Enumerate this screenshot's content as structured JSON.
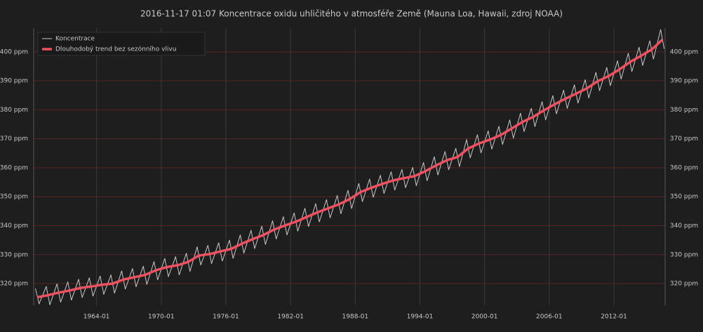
{
  "chart_data": {
    "type": "line",
    "title": "2016-11-17  01:07  Koncentrace oxidu uhličitého v atmosféře Země (Mauna Loa, Hawaii, zdroj NOAA)",
    "xlim": [
      "1958-03",
      "2016-10"
    ],
    "xticks": [
      "1964-01",
      "1970-01",
      "1976-01",
      "1982-01",
      "1988-01",
      "1994-01",
      "2000-01",
      "2006-01",
      "2012-01"
    ],
    "ylim": [
      312.5,
      408.2
    ],
    "yticks": [
      {
        "value": 320,
        "label": "320 ppm"
      },
      {
        "value": 330,
        "label": "330 ppm"
      },
      {
        "value": 340,
        "label": "340 ppm"
      },
      {
        "value": 350,
        "label": "350 ppm"
      },
      {
        "value": 360,
        "label": "360 ppm"
      },
      {
        "value": 370,
        "label": "370 ppm"
      },
      {
        "value": 380,
        "label": "380 ppm"
      },
      {
        "value": 390,
        "label": "390 ppm"
      },
      {
        "value": 400,
        "label": "400 ppm"
      }
    ],
    "grid": true,
    "legend": "top-left",
    "series": [
      {
        "name": "Koncentrace",
        "color": "#c8c8c8",
        "x": [
          "1958-05",
          "1958-09",
          "1959-05",
          "1959-09",
          "1960-05",
          "1960-09",
          "1961-05",
          "1961-09",
          "1962-05",
          "1962-09",
          "1963-05",
          "1963-09",
          "1964-05",
          "1964-09",
          "1965-05",
          "1965-09",
          "1966-05",
          "1966-09",
          "1967-05",
          "1967-09",
          "1968-05",
          "1968-09",
          "1969-05",
          "1969-09",
          "1970-05",
          "1970-09",
          "1971-05",
          "1971-09",
          "1972-05",
          "1972-09",
          "1973-05",
          "1973-09",
          "1974-05",
          "1974-09",
          "1975-05",
          "1975-09",
          "1976-05",
          "1976-09",
          "1977-05",
          "1977-09",
          "1978-05",
          "1978-09",
          "1979-05",
          "1979-09",
          "1980-05",
          "1980-09",
          "1981-05",
          "1981-09",
          "1982-05",
          "1982-09",
          "1983-05",
          "1983-09",
          "1984-05",
          "1984-09",
          "1985-05",
          "1985-09",
          "1986-05",
          "1986-09",
          "1987-05",
          "1987-09",
          "1988-05",
          "1988-09",
          "1989-05",
          "1989-09",
          "1990-05",
          "1990-09",
          "1991-05",
          "1991-09",
          "1992-05",
          "1992-09",
          "1993-05",
          "1993-09",
          "1994-05",
          "1994-09",
          "1995-05",
          "1995-09",
          "1996-05",
          "1996-09",
          "1997-05",
          "1997-09",
          "1998-05",
          "1998-09",
          "1999-05",
          "1999-09",
          "2000-05",
          "2000-09",
          "2001-05",
          "2001-09",
          "2002-05",
          "2002-09",
          "2003-05",
          "2003-09",
          "2004-05",
          "2004-09",
          "2005-05",
          "2005-09",
          "2006-05",
          "2006-09",
          "2007-05",
          "2007-09",
          "2008-05",
          "2008-09",
          "2009-05",
          "2009-09",
          "2010-05",
          "2010-09",
          "2011-05",
          "2011-09",
          "2012-05",
          "2012-09",
          "2013-05",
          "2013-09",
          "2014-05",
          "2014-09",
          "2015-05",
          "2015-09",
          "2016-05",
          "2016-09"
        ],
        "values": [
          318.3,
          313.0,
          319.0,
          312.7,
          319.9,
          313.6,
          320.6,
          314.3,
          321.5,
          315.2,
          322.0,
          315.7,
          322.6,
          316.3,
          323.0,
          316.7,
          324.4,
          318.1,
          325.2,
          318.9,
          326.0,
          319.7,
          327.6,
          321.3,
          328.7,
          322.4,
          329.3,
          323.0,
          330.5,
          324.2,
          332.7,
          326.4,
          333.2,
          326.9,
          334.1,
          327.8,
          335.0,
          328.7,
          336.8,
          330.5,
          338.4,
          332.1,
          339.8,
          333.5,
          341.7,
          335.4,
          343.1,
          336.8,
          344.4,
          338.1,
          346.0,
          339.7,
          347.6,
          341.3,
          349.0,
          342.7,
          350.4,
          344.1,
          352.2,
          345.9,
          354.6,
          348.3,
          356.1,
          349.8,
          357.4,
          351.1,
          358.6,
          352.3,
          359.4,
          353.1,
          360.1,
          353.8,
          361.8,
          355.5,
          363.8,
          357.5,
          365.6,
          359.3,
          366.7,
          360.4,
          369.7,
          363.4,
          371.4,
          365.1,
          372.7,
          366.4,
          374.3,
          368.0,
          376.5,
          370.2,
          378.8,
          372.5,
          380.5,
          374.2,
          382.8,
          376.5,
          384.9,
          378.6,
          386.8,
          380.5,
          388.6,
          382.3,
          390.4,
          384.1,
          392.9,
          386.6,
          394.6,
          388.3,
          396.9,
          390.6,
          399.5,
          393.2,
          401.6,
          395.3,
          403.8,
          397.5,
          407.7,
          401.0
        ]
      },
      {
        "name": "Dlouhodobý trend bez sezónního vlivu",
        "color": "#f0505f",
        "x": [
          "1958-07",
          "1959-07",
          "1960-07",
          "1961-07",
          "1962-07",
          "1963-07",
          "1964-07",
          "1965-07",
          "1966-07",
          "1967-07",
          "1968-07",
          "1969-07",
          "1970-07",
          "1971-07",
          "1972-07",
          "1973-07",
          "1974-07",
          "1975-07",
          "1976-07",
          "1977-07",
          "1978-07",
          "1979-07",
          "1980-07",
          "1981-07",
          "1982-07",
          "1983-07",
          "1984-07",
          "1985-07",
          "1986-07",
          "1987-07",
          "1988-07",
          "1989-07",
          "1990-07",
          "1991-07",
          "1992-07",
          "1993-07",
          "1994-07",
          "1995-07",
          "1996-07",
          "1997-07",
          "1998-07",
          "1999-07",
          "2000-07",
          "2001-07",
          "2002-07",
          "2003-07",
          "2004-07",
          "2005-07",
          "2006-07",
          "2007-07",
          "2008-07",
          "2009-07",
          "2010-07",
          "2011-07",
          "2012-07",
          "2013-07",
          "2014-07",
          "2015-07",
          "2016-07"
        ],
        "values": [
          315.3,
          316.0,
          316.9,
          317.6,
          318.5,
          319.0,
          319.6,
          320.0,
          321.4,
          322.2,
          323.0,
          324.6,
          325.7,
          326.3,
          327.5,
          329.7,
          330.2,
          331.1,
          332.0,
          333.8,
          335.4,
          336.8,
          338.7,
          340.1,
          341.4,
          343.0,
          344.6,
          346.0,
          347.4,
          349.2,
          351.6,
          353.1,
          354.4,
          355.6,
          356.4,
          357.1,
          358.8,
          360.8,
          362.6,
          363.7,
          366.7,
          368.4,
          369.7,
          371.3,
          373.5,
          375.8,
          377.5,
          379.8,
          381.9,
          383.8,
          385.6,
          387.4,
          389.9,
          391.6,
          393.9,
          396.5,
          398.6,
          400.8,
          404.2
        ]
      }
    ]
  }
}
